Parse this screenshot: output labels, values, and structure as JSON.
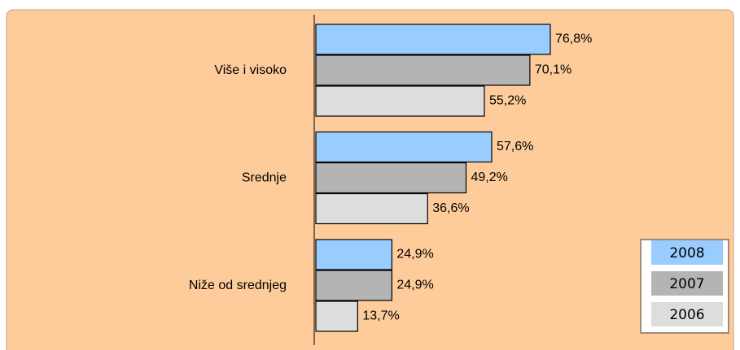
{
  "chart_data": {
    "type": "hbar",
    "categories": [
      "Više i visoko",
      "Srednje",
      "Niže od srednjeg"
    ],
    "series": [
      {
        "name": "2008",
        "color": "#99ccff",
        "values": [
          76.8,
          57.6,
          24.9
        ],
        "value_labels": [
          "76,8%",
          "57,6%",
          "24,9%"
        ]
      },
      {
        "name": "2007",
        "color": "#b4b4b4",
        "values": [
          70.1,
          49.2,
          24.9
        ],
        "value_labels": [
          "70,1%",
          "49,2%",
          "24,9%"
        ]
      },
      {
        "name": "2006",
        "color": "#dddddd",
        "values": [
          55.2,
          36.6,
          13.7
        ],
        "value_labels": [
          "55,2%",
          "36,6%",
          "13,7%"
        ]
      }
    ],
    "legend": "bottom-right"
  }
}
